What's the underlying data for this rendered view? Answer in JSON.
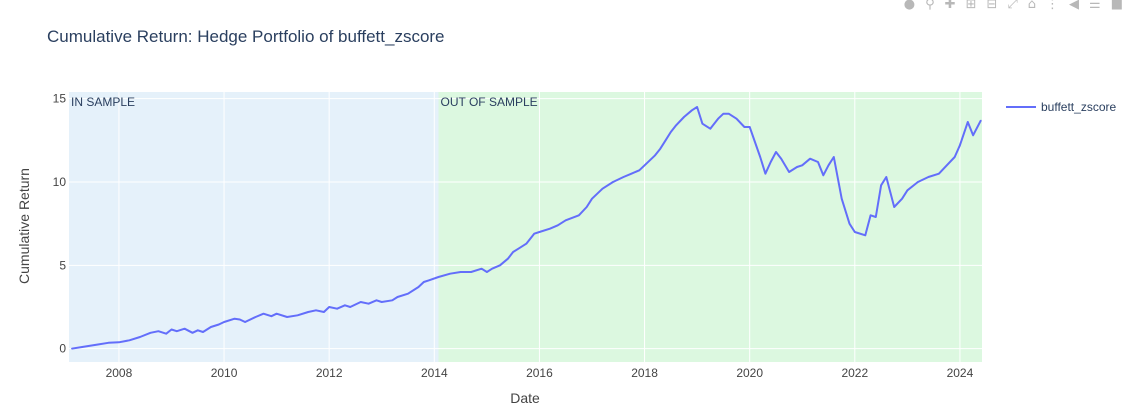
{
  "toolbar": {
    "icons": [
      "camera-icon",
      "zoom-icon",
      "pan-icon",
      "zoom-in-icon",
      "zoom-out-icon",
      "autoscale-icon",
      "reset-axes-icon",
      "spike-lines-icon",
      "hover-closest-icon",
      "hover-compare-icon",
      "plotly-logo-icon"
    ]
  },
  "chart_data": {
    "type": "line",
    "title": "Cumulative Return: Hedge Portfolio of buffett_zscore",
    "xlabel": "Date",
    "ylabel": "Cumulative Return",
    "xlim": [
      2007.05,
      2024.42
    ],
    "ylim": [
      -0.8,
      15.4
    ],
    "x_ticks": [
      "2008",
      "2010",
      "2012",
      "2014",
      "2016",
      "2018",
      "2020",
      "2022",
      "2024"
    ],
    "y_ticks": [
      "0",
      "5",
      "10",
      "15"
    ],
    "grid": true,
    "legend_position": "top-right",
    "colors": {
      "line": "#636efa",
      "in_sample_bg": "#e5f1fa",
      "out_sample_bg": "#dcf8e0",
      "grid": "#ffffff",
      "text": "#2a3f5f",
      "axis_text": "#444444"
    },
    "regions": [
      {
        "label": "IN SAMPLE",
        "x_start": 2007.05,
        "x_end": 2014.08
      },
      {
        "label": "OUT OF SAMPLE",
        "x_start": 2014.08,
        "x_end": 2024.42
      }
    ],
    "series": [
      {
        "name": "buffett_zscore",
        "x": [
          2007.1,
          2007.3,
          2007.6,
          2007.8,
          2008.0,
          2008.2,
          2008.4,
          2008.6,
          2008.75,
          2008.9,
          2009.0,
          2009.1,
          2009.25,
          2009.4,
          2009.5,
          2009.6,
          2009.75,
          2009.9,
          2010.0,
          2010.2,
          2010.3,
          2010.4,
          2010.6,
          2010.75,
          2010.9,
          2011.0,
          2011.2,
          2011.4,
          2011.6,
          2011.75,
          2011.9,
          2012.0,
          2012.15,
          2012.3,
          2012.4,
          2012.6,
          2012.75,
          2012.9,
          2013.0,
          2013.2,
          2013.3,
          2013.5,
          2013.7,
          2013.8,
          2013.9,
          2014.08,
          2014.3,
          2014.5,
          2014.7,
          2014.9,
          2015.0,
          2015.1,
          2015.25,
          2015.4,
          2015.5,
          2015.6,
          2015.75,
          2015.9,
          2016.0,
          2016.2,
          2016.35,
          2016.5,
          2016.75,
          2016.9,
          2017.0,
          2017.2,
          2017.4,
          2017.6,
          2017.75,
          2017.9,
          2018.0,
          2018.2,
          2018.3,
          2018.4,
          2018.5,
          2018.6,
          2018.75,
          2018.9,
          2019.0,
          2019.1,
          2019.25,
          2019.4,
          2019.5,
          2019.6,
          2019.75,
          2019.9,
          2020.0,
          2020.2,
          2020.3,
          2020.4,
          2020.5,
          2020.6,
          2020.75,
          2020.9,
          2021.0,
          2021.15,
          2021.3,
          2021.4,
          2021.5,
          2021.6,
          2021.75,
          2021.9,
          2022.0,
          2022.2,
          2022.3,
          2022.4,
          2022.5,
          2022.6,
          2022.75,
          2022.9,
          2023.0,
          2023.2,
          2023.4,
          2023.6,
          2023.75,
          2023.9,
          2024.0,
          2024.15,
          2024.25,
          2024.4
        ],
        "y": [
          0.0,
          0.1,
          0.25,
          0.35,
          0.38,
          0.5,
          0.7,
          0.95,
          1.05,
          0.9,
          1.15,
          1.05,
          1.2,
          0.95,
          1.1,
          1.0,
          1.3,
          1.45,
          1.6,
          1.8,
          1.75,
          1.6,
          1.9,
          2.1,
          1.95,
          2.1,
          1.9,
          2.0,
          2.2,
          2.3,
          2.2,
          2.5,
          2.4,
          2.6,
          2.5,
          2.8,
          2.7,
          2.9,
          2.8,
          2.9,
          3.1,
          3.3,
          3.7,
          4.0,
          4.1,
          4.3,
          4.5,
          4.6,
          4.6,
          4.8,
          4.6,
          4.8,
          5.0,
          5.4,
          5.8,
          6.0,
          6.3,
          6.9,
          7.0,
          7.2,
          7.4,
          7.7,
          8.0,
          8.5,
          9.0,
          9.6,
          10.0,
          10.3,
          10.5,
          10.7,
          11.0,
          11.6,
          12.0,
          12.5,
          13.0,
          13.4,
          13.9,
          14.3,
          14.5,
          13.5,
          13.2,
          13.8,
          14.1,
          14.1,
          13.8,
          13.3,
          13.3,
          11.5,
          10.5,
          11.2,
          11.8,
          11.4,
          10.6,
          10.9,
          11.0,
          11.4,
          11.2,
          10.4,
          11.0,
          11.5,
          9.0,
          7.5,
          7.0,
          6.8,
          8.0,
          7.9,
          9.8,
          10.3,
          8.5,
          9.0,
          9.5,
          10.0,
          10.3,
          10.5,
          11.0,
          11.5,
          12.2,
          13.6,
          12.8,
          13.7
        ]
      }
    ]
  }
}
